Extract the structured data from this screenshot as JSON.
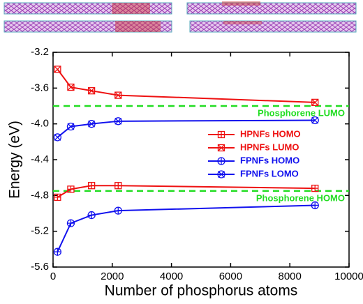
{
  "chart_data": {
    "type": "line",
    "x_label": "Number of phosphorus atoms",
    "y_label": "Energy (eV)",
    "xlim": [
      0,
      10000
    ],
    "xticks": [
      0,
      2000,
      4000,
      6000,
      8000,
      10000
    ],
    "ylim": [
      -5.6,
      -3.2
    ],
    "yticks": [
      -5.6,
      -5.2,
      -4.8,
      -4.4,
      {
        "value": -4,
        "label": "-4.0"
      },
      -3.6,
      -3.2
    ],
    "series": [
      {
        "name": "HPNFs HOMO",
        "color": "#ee1111",
        "marker": "square-plus",
        "x": [
          150,
          600,
          1300,
          2200,
          8850
        ],
        "values": [
          -4.82,
          -4.73,
          -4.69,
          -4.69,
          -4.72
        ]
      },
      {
        "name": "HPNFs LUMO",
        "color": "#ee1111",
        "marker": "square-cross",
        "x": [
          150,
          600,
          1300,
          2200,
          8850
        ],
        "values": [
          -3.39,
          -3.59,
          -3.63,
          -3.68,
          -3.76
        ]
      },
      {
        "name": "FPNFs HOMO",
        "color": "#1111ee",
        "marker": "circle-plus",
        "x": [
          150,
          600,
          1300,
          2200,
          8850
        ],
        "values": [
          -5.43,
          -5.11,
          -5.02,
          -4.97,
          -4.91
        ]
      },
      {
        "name": "FPNFs LOMO",
        "color": "#1111ee",
        "marker": "circle-cross",
        "x": [
          150,
          600,
          1300,
          2200,
          8850
        ],
        "values": [
          -4.15,
          -4.03,
          -4.0,
          -3.97,
          -3.96
        ]
      }
    ],
    "reference_lines": [
      {
        "value": -3.8,
        "label": "Phosphorene LUMO",
        "color": "#22dd22"
      },
      {
        "value": -4.75,
        "label": "Phosphorene HOMO",
        "color": "#22dd22"
      }
    ]
  }
}
